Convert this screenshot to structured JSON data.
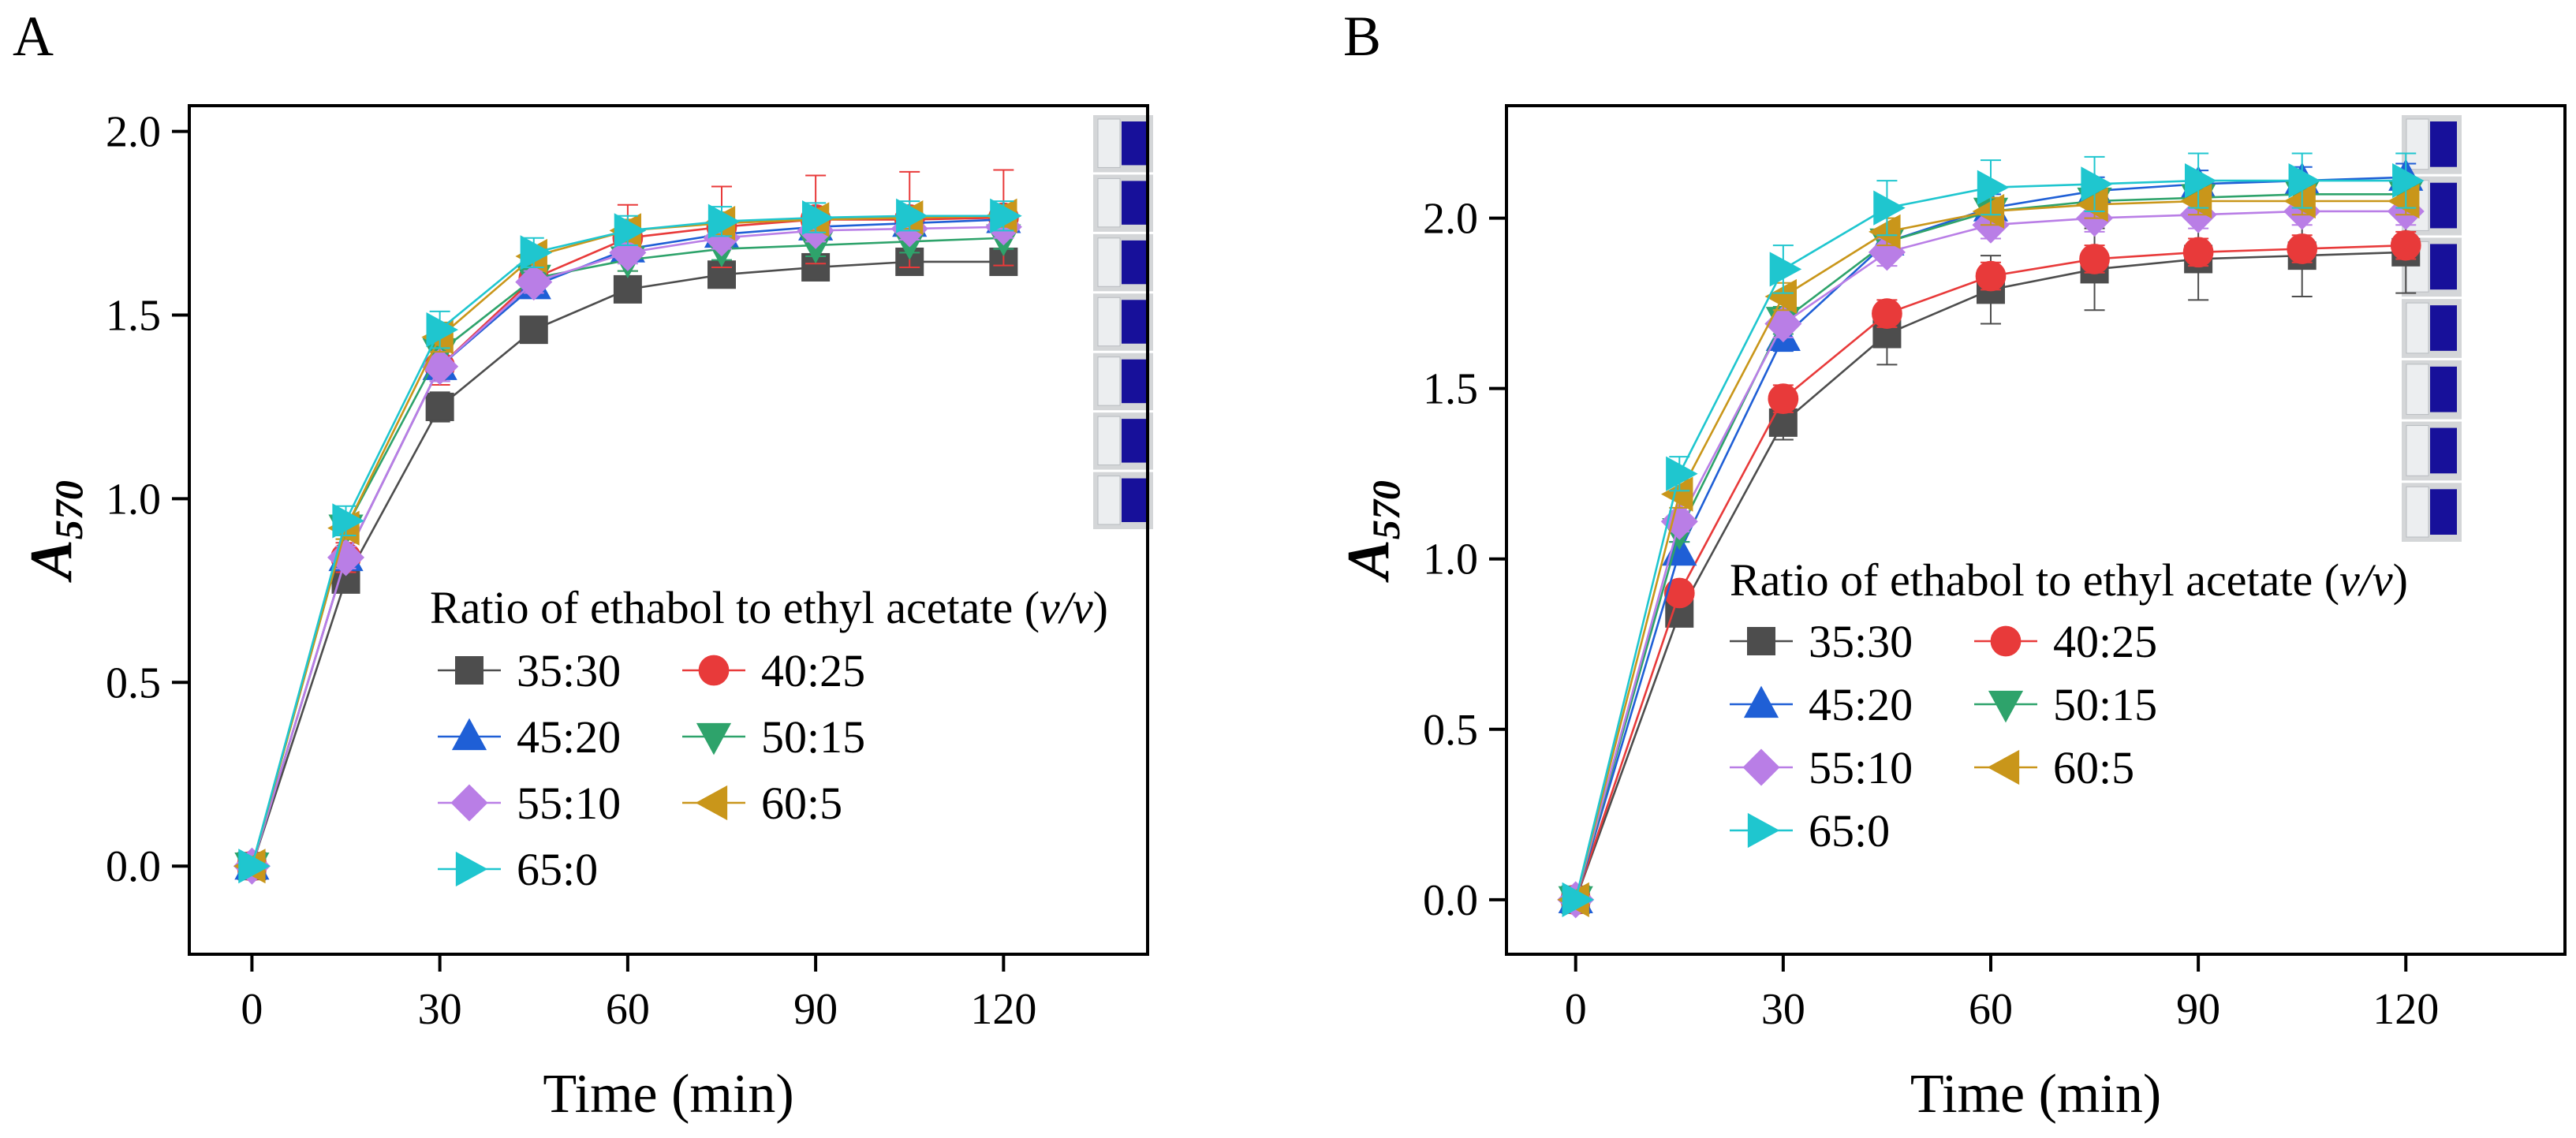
{
  "chart_data": [
    {
      "type": "line",
      "panel_label": "A",
      "xlabel": "Time (min)",
      "ylabel_main": "A",
      "ylabel_sub": "570",
      "xlim": [
        -10,
        143
      ],
      "ylim": [
        -0.24,
        2.07
      ],
      "xticks": [
        0,
        30,
        60,
        90,
        120
      ],
      "yticks": [
        0.0,
        0.5,
        1.0,
        1.5,
        2.0
      ],
      "xtick_labels": [
        "0",
        "30",
        "60",
        "90",
        "120"
      ],
      "ytick_labels": [
        "0.0",
        "0.5",
        "1.0",
        "1.5",
        "2.0"
      ],
      "x": [
        0,
        15,
        30,
        45,
        60,
        75,
        90,
        105,
        120
      ],
      "legend_title_main": "Ratio of ethabol to ethyl acetate (",
      "legend_title_italic": "v/v",
      "legend_title_end": ")",
      "legend_placement": "center-right",
      "inset": "photo of seven blue vials at top-right",
      "series": [
        {
          "name": "35:30",
          "color": "#4d4d4d",
          "marker": "square",
          "values": [
            0,
            0.78,
            1.25,
            1.46,
            1.57,
            1.61,
            1.63,
            1.645,
            1.645
          ],
          "errors": [
            0,
            0.03,
            0.04,
            0.03,
            0.02,
            0.02,
            0.02,
            0.02,
            0.02
          ]
        },
        {
          "name": "40:25",
          "color": "#e83a3a",
          "marker": "circle",
          "values": [
            0,
            0.84,
            1.36,
            1.6,
            1.71,
            1.74,
            1.76,
            1.76,
            1.765
          ],
          "errors": [
            0,
            0.04,
            0.05,
            0.05,
            0.09,
            0.11,
            0.12,
            0.13,
            0.13
          ]
        },
        {
          "name": "45:20",
          "color": "#1f5fd6",
          "marker": "triangle-up",
          "values": [
            0,
            0.84,
            1.36,
            1.58,
            1.68,
            1.72,
            1.74,
            1.75,
            1.76
          ],
          "errors": [
            0,
            0.03,
            0.04,
            0.03,
            0.03,
            0.03,
            0.03,
            0.03,
            0.03
          ]
        },
        {
          "name": "50:15",
          "color": "#2ea36b",
          "marker": "triangle-down",
          "values": [
            0,
            0.92,
            1.4,
            1.6,
            1.65,
            1.68,
            1.69,
            1.7,
            1.71
          ],
          "errors": [
            0,
            0.03,
            0.04,
            0.03,
            0.03,
            0.03,
            0.03,
            0.03,
            0.03
          ]
        },
        {
          "name": "55:10",
          "color": "#b97ee6",
          "marker": "diamond",
          "values": [
            0,
            0.84,
            1.36,
            1.59,
            1.67,
            1.71,
            1.73,
            1.735,
            1.74
          ],
          "errors": [
            0,
            0.03,
            0.04,
            0.03,
            0.03,
            0.03,
            0.03,
            0.03,
            0.03
          ]
        },
        {
          "name": "60:5",
          "color": "#c9961a",
          "marker": "triangle-left",
          "values": [
            0,
            0.92,
            1.44,
            1.66,
            1.73,
            1.75,
            1.76,
            1.765,
            1.77
          ],
          "errors": [
            0,
            0.03,
            0.04,
            0.03,
            0.03,
            0.03,
            0.03,
            0.03,
            0.03
          ]
        },
        {
          "name": "65:0",
          "color": "#1fc6cf",
          "marker": "triangle-right",
          "values": [
            0,
            0.94,
            1.46,
            1.67,
            1.73,
            1.755,
            1.765,
            1.77,
            1.77
          ],
          "errors": [
            0,
            0.04,
            0.05,
            0.04,
            0.04,
            0.04,
            0.04,
            0.04,
            0.04
          ]
        }
      ]
    },
    {
      "type": "line",
      "panel_label": "B",
      "xlabel": "Time (min)",
      "ylabel_main": "A",
      "ylabel_sub": "570",
      "xlim": [
        -10,
        143
      ],
      "ylim": [
        -0.16,
        2.33
      ],
      "xticks": [
        0,
        30,
        60,
        90,
        120
      ],
      "yticks": [
        0.0,
        0.5,
        1.0,
        1.5,
        2.0
      ],
      "xtick_labels": [
        "0",
        "30",
        "60",
        "90",
        "120"
      ],
      "ytick_labels": [
        "0.0",
        "0.5",
        "1.0",
        "1.5",
        "2.0"
      ],
      "x": [
        0,
        15,
        30,
        45,
        60,
        75,
        90,
        105,
        120
      ],
      "legend_title_main": "Ratio of ethabol to ethyl acetate (",
      "legend_title_italic": "v/v",
      "legend_title_end": ")",
      "legend_placement": "center-right",
      "inset": "photo of seven blue vials at top-right",
      "series": [
        {
          "name": "35:30",
          "color": "#4d4d4d",
          "marker": "square",
          "values": [
            0,
            0.84,
            1.4,
            1.66,
            1.79,
            1.85,
            1.88,
            1.89,
            1.9
          ],
          "errors": [
            0,
            0.03,
            0.05,
            0.09,
            0.1,
            0.12,
            0.12,
            0.12,
            0.12
          ]
        },
        {
          "name": "40:25",
          "color": "#e83a3a",
          "marker": "circle",
          "values": [
            0,
            0.9,
            1.47,
            1.72,
            1.83,
            1.88,
            1.9,
            1.91,
            1.92
          ],
          "errors": [
            0,
            0.03,
            0.04,
            0.04,
            0.04,
            0.04,
            0.04,
            0.04,
            0.04
          ]
        },
        {
          "name": "45:20",
          "color": "#1f5fd6",
          "marker": "triangle-up",
          "values": [
            0,
            1.02,
            1.65,
            1.93,
            2.03,
            2.08,
            2.1,
            2.11,
            2.12
          ],
          "errors": [
            0,
            0.03,
            0.04,
            0.04,
            0.04,
            0.04,
            0.04,
            0.04,
            0.04
          ]
        },
        {
          "name": "50:15",
          "color": "#2ea36b",
          "marker": "triangle-down",
          "values": [
            0,
            1.08,
            1.7,
            1.93,
            2.02,
            2.05,
            2.06,
            2.07,
            2.07
          ],
          "errors": [
            0,
            0.03,
            0.04,
            0.04,
            0.04,
            0.04,
            0.04,
            0.04,
            0.04
          ]
        },
        {
          "name": "55:10",
          "color": "#b97ee6",
          "marker": "diamond",
          "values": [
            0,
            1.11,
            1.69,
            1.9,
            1.98,
            2.0,
            2.01,
            2.02,
            2.02
          ],
          "errors": [
            0,
            0.03,
            0.04,
            0.04,
            0.04,
            0.04,
            0.04,
            0.04,
            0.04
          ]
        },
        {
          "name": "60:5",
          "color": "#c9961a",
          "marker": "triangle-left",
          "values": [
            0,
            1.19,
            1.77,
            1.96,
            2.02,
            2.04,
            2.05,
            2.05,
            2.05
          ],
          "errors": [
            0,
            0.04,
            0.04,
            0.04,
            0.04,
            0.04,
            0.04,
            0.04,
            0.04
          ]
        },
        {
          "name": "65:0",
          "color": "#1fc6cf",
          "marker": "triangle-right",
          "values": [
            0,
            1.25,
            1.85,
            2.03,
            2.09,
            2.1,
            2.11,
            2.11,
            2.11
          ],
          "errors": [
            0,
            0.05,
            0.07,
            0.08,
            0.08,
            0.08,
            0.08,
            0.08,
            0.08
          ]
        }
      ]
    }
  ]
}
